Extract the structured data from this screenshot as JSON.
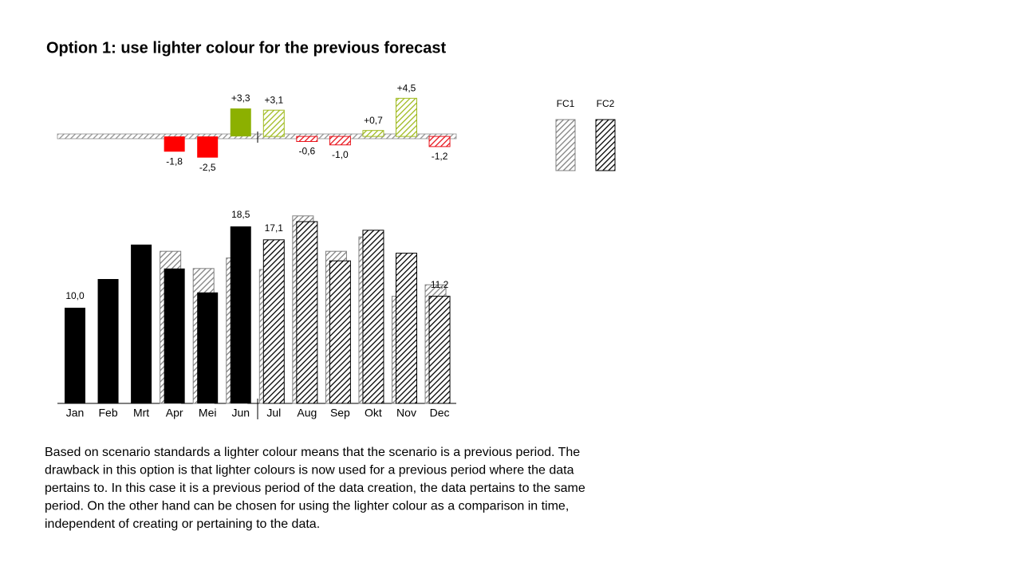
{
  "title": "Option 1: use lighter colour for the previous forecast",
  "chart_data": [
    {
      "type": "variance",
      "ylim": [
        -3,
        5
      ],
      "series": [
        {
          "pattern": "solid",
          "positive_color": "#8cb000",
          "negative_color": "#ff0000",
          "values": [
            null,
            null,
            null,
            -1.8,
            -2.5,
            3.3,
            null,
            null,
            null,
            null,
            null,
            null
          ],
          "value_labels": [
            null,
            null,
            null,
            "-1,8",
            "-2,5",
            "+3,3",
            null,
            null,
            null,
            null,
            null,
            null
          ]
        },
        {
          "pattern": "hatch",
          "positive_color": "#9fba1e",
          "negative_color": "#e8141c",
          "values": [
            null,
            null,
            null,
            null,
            null,
            null,
            3.1,
            -0.6,
            -1.0,
            0.7,
            4.5,
            -1.2
          ],
          "value_labels": [
            null,
            null,
            null,
            null,
            null,
            null,
            "+3,1",
            "-0,6",
            "-1,0",
            "+0,7",
            "+4,5",
            "-1,2"
          ]
        }
      ]
    },
    {
      "type": "bar",
      "categories": [
        "Jan",
        "Feb",
        "Mrt",
        "Apr",
        "Mei",
        "Jun",
        "Jul",
        "Aug",
        "Sep",
        "Okt",
        "Nov",
        "Dec"
      ],
      "ylim": [
        0,
        20
      ],
      "series": [
        {
          "name": "FC1",
          "color": "#808080",
          "pattern": "hatch",
          "offset": "behind",
          "values": [
            null,
            null,
            null,
            15.9,
            14.1,
            15.2,
            14.0,
            19.6,
            15.9,
            17.4,
            11.2,
            12.4
          ]
        },
        {
          "color": "#000000",
          "pattern": "solid",
          "values": [
            10.0,
            13.0,
            16.6,
            14.1,
            11.6,
            18.5,
            null,
            null,
            null,
            null,
            null,
            null
          ],
          "value_labels": [
            "10,0",
            null,
            null,
            null,
            null,
            "18,5",
            null,
            null,
            null,
            null,
            null,
            null
          ]
        },
        {
          "name": "FC2",
          "color": "#000000",
          "pattern": "hatch",
          "values": [
            null,
            null,
            null,
            null,
            null,
            null,
            17.1,
            19.0,
            14.9,
            18.1,
            15.7,
            11.2
          ],
          "value_labels": [
            null,
            null,
            null,
            null,
            null,
            null,
            "17,1",
            null,
            null,
            null,
            null,
            "11,2"
          ]
        }
      ]
    }
  ],
  "text": [
    "Based on scenario standards a lighter colour means that the scenario is a previous period. The",
    "drawback in this option is that lighter colours is now used for a previous period where the data",
    "pertains to.  In this case it is a previous period of the data creation, the data pertains to the same",
    "period. On the other hand can be chosen for using the lighter colour as a comparison in time,",
    "independent of creating or pertaining to the data."
  ]
}
